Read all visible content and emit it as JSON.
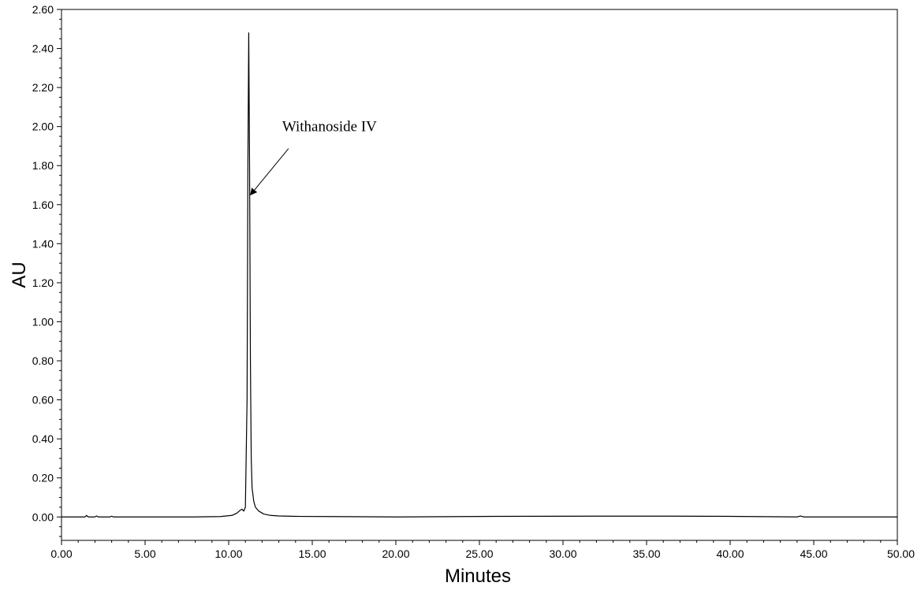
{
  "chart_data": {
    "type": "line",
    "title": "",
    "xlabel": "Minutes",
    "ylabel": "AU",
    "xlim": [
      0,
      50
    ],
    "ylim": [
      -0.12,
      2.6
    ],
    "x_ticks": [
      "0.00",
      "5.00",
      "10.00",
      "15.00",
      "20.00",
      "25.00",
      "30.00",
      "35.00",
      "40.00",
      "45.00",
      "50.00"
    ],
    "y_ticks": [
      "0.00",
      "0.20",
      "0.40",
      "0.60",
      "0.80",
      "1.00",
      "1.20",
      "1.40",
      "1.60",
      "1.80",
      "2.00",
      "2.20",
      "2.40",
      "2.60"
    ],
    "grid": false,
    "legend": "none",
    "series": [
      {
        "x": [
          0,
          1.4,
          1.5,
          1.6,
          2.0,
          2.1,
          2.2,
          2.9,
          3.0,
          3.1,
          5,
          8,
          9.5,
          10.2,
          10.5,
          10.7,
          10.8,
          10.9,
          11.0,
          11.1,
          11.15,
          11.2,
          11.25,
          11.3,
          11.35,
          11.4,
          11.5,
          11.6,
          11.8,
          12.1,
          12.5,
          13,
          14,
          16,
          20,
          26,
          32,
          36.5,
          40,
          44,
          44.2,
          44.4,
          50
        ],
        "y": [
          0.0,
          0.0,
          0.008,
          0.0,
          0.0,
          0.005,
          0.0,
          0.0,
          0.004,
          0.0,
          0.0,
          0.0,
          0.002,
          0.008,
          0.02,
          0.035,
          0.04,
          0.03,
          0.05,
          0.6,
          1.8,
          2.48,
          1.8,
          0.8,
          0.3,
          0.15,
          0.08,
          0.05,
          0.03,
          0.015,
          0.008,
          0.005,
          0.003,
          0.002,
          0.0,
          0.003,
          0.004,
          0.004,
          0.003,
          0.0,
          0.005,
          0.0,
          0.0
        ]
      }
    ],
    "annotations": [
      {
        "text": "Withanoside IV",
        "x": 13.2,
        "y": 2.0,
        "arrow_to": [
          11.3,
          1.65
        ]
      }
    ],
    "colors": {
      "line": "#000000",
      "axis": "#000000",
      "background": "#ffffff"
    }
  }
}
